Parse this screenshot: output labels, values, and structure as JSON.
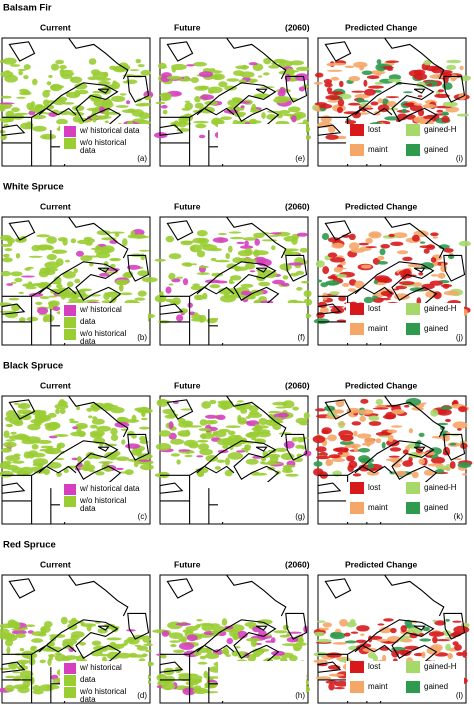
{
  "colors": {
    "historical": "#d63fbf",
    "no_historical": "#9acd32",
    "lost": "#d7191c",
    "maint": "#f5a768",
    "gained_h": "#a6d96a",
    "gained": "#2e9a4e"
  },
  "rows": [
    {
      "species": "Balsam Fir",
      "headers": [
        "Current",
        "Future",
        "(2060)",
        "Predicted Change"
      ],
      "legend_current": [
        [
          "w/ historical data"
        ],
        [
          "w/o historical",
          "data"
        ]
      ],
      "legend_change": [
        "lost",
        "maint",
        "gained-H",
        "gained"
      ],
      "panel_labels": [
        "(a)",
        "(e)",
        "(i)"
      ]
    },
    {
      "species": "White Spruce",
      "headers": [
        "Current",
        "Future",
        "(2060)",
        "Predicted Change"
      ],
      "legend_current": [
        [
          "w/ historical"
        ],
        [
          "data"
        ],
        [
          "w/o historical",
          "data"
        ]
      ],
      "legend_change": [
        "lost",
        "maint",
        "gained-H",
        "gained"
      ],
      "panel_labels": [
        "(b)",
        "(f)",
        "(j)"
      ]
    },
    {
      "species": "Black Spruce",
      "headers": [
        "Current",
        "Future",
        "(2060)",
        "Predicted Change"
      ],
      "legend_current": [
        [
          "w/ historical data"
        ],
        [
          "w/o historical",
          "data"
        ]
      ],
      "legend_change": [
        "lost",
        "maint",
        "gained-H",
        "gained"
      ],
      "panel_labels": [
        "(c)",
        "(g)",
        "(k)"
      ]
    },
    {
      "species": "Red Spruce",
      "headers": [
        "Current",
        "Future",
        "(2060)",
        "Predicted Change"
      ],
      "legend_current": [
        [
          "w/ historical"
        ],
        [
          "data"
        ],
        [
          "w/o historical",
          "data"
        ]
      ],
      "legend_change": [
        "lost",
        "maint",
        "gained-H",
        "gained"
      ],
      "panel_labels": [
        "(d)",
        "(h)",
        "(l)"
      ]
    }
  ]
}
